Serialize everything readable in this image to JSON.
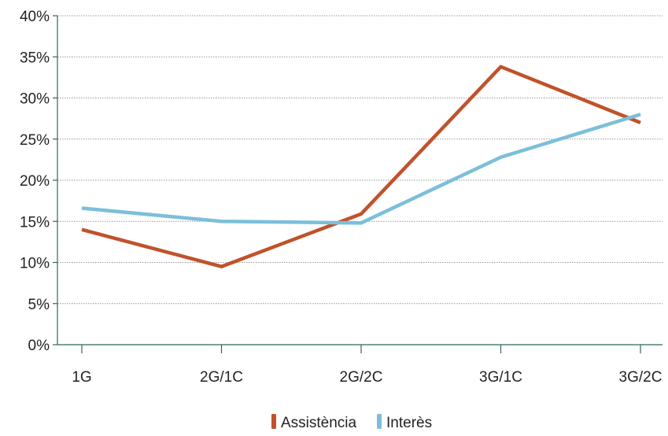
{
  "chart_data": {
    "type": "line",
    "title": "",
    "xlabel": "",
    "ylabel": "",
    "categories": [
      "1G",
      "2G/1C",
      "2G/2C",
      "3G/1C",
      "3G/2C"
    ],
    "series": [
      {
        "name": "Assistència",
        "color": "#C0522B",
        "values": [
          14,
          9.5,
          15.9,
          33.8,
          27
        ]
      },
      {
        "name": "Interès",
        "color": "#7BBFDA",
        "values": [
          16.6,
          15,
          14.8,
          22.8,
          28
        ]
      }
    ],
    "ylim": [
      0,
      40
    ],
    "yticks": [
      0,
      5,
      10,
      15,
      20,
      25,
      30,
      35,
      40
    ],
    "ytick_labels": [
      "0%",
      "5%",
      "10%",
      "15%",
      "20%",
      "25%",
      "30%",
      "35%",
      "40%"
    ],
    "grid": true,
    "legend_position": "bottom-center",
    "axis_color": "#2E6B4E"
  }
}
